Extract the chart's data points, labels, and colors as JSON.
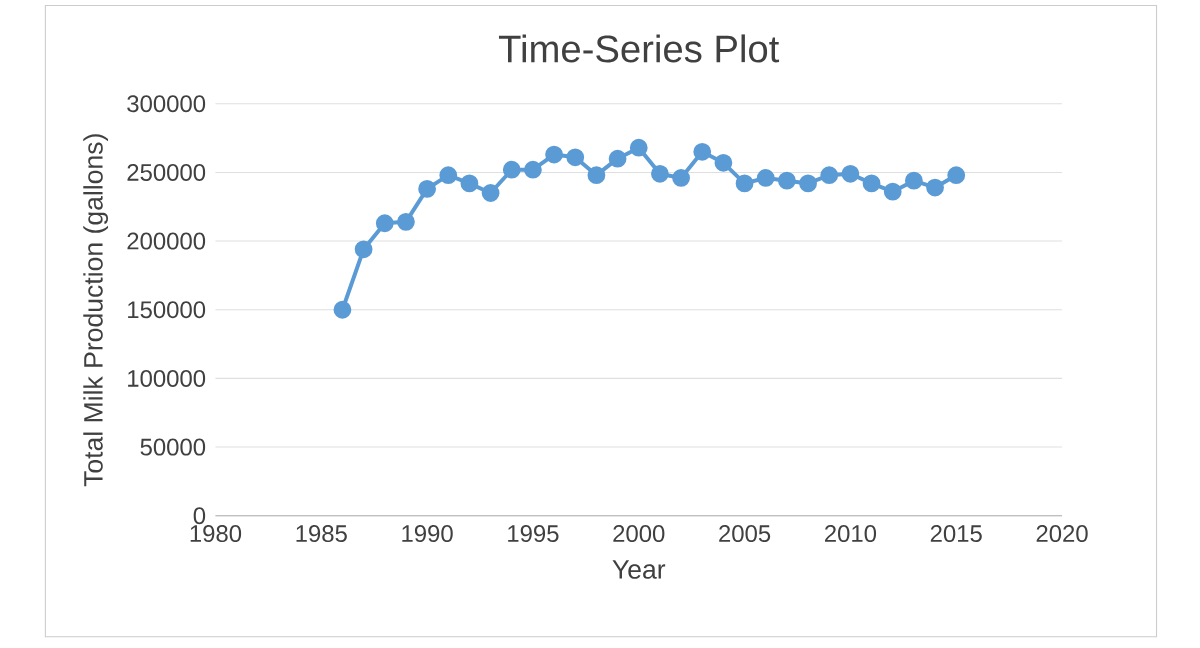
{
  "chart_data": {
    "type": "line",
    "title": "Time-Series Plot",
    "xlabel": "Year",
    "ylabel": "Total Milk Production (gallons)",
    "x": [
      1986,
      1987,
      1988,
      1989,
      1990,
      1991,
      1992,
      1993,
      1994,
      1995,
      1996,
      1997,
      1998,
      1999,
      2000,
      2001,
      2002,
      2003,
      2004,
      2005,
      2006,
      2007,
      2008,
      2009,
      2010,
      2011,
      2012,
      2013,
      2014,
      2015
    ],
    "values": [
      150000,
      194000,
      213000,
      214000,
      238000,
      248000,
      242000,
      235000,
      252000,
      252000,
      263000,
      261000,
      248000,
      260000,
      268000,
      249000,
      246000,
      265000,
      257000,
      242000,
      246000,
      244000,
      242000,
      248000,
      249000,
      242000,
      236000,
      244000,
      239000,
      248000
    ],
    "color": "#5b9bd5",
    "xlim": [
      1980,
      2020
    ],
    "xticks": [
      1980,
      1985,
      1990,
      1995,
      2000,
      2005,
      2010,
      2015,
      2020
    ],
    "ylim": [
      0,
      300000
    ],
    "yticks": [
      0,
      50000,
      100000,
      150000,
      200000,
      250000,
      300000
    ],
    "grid": "y",
    "marker": "circle",
    "line_style": "solid"
  }
}
